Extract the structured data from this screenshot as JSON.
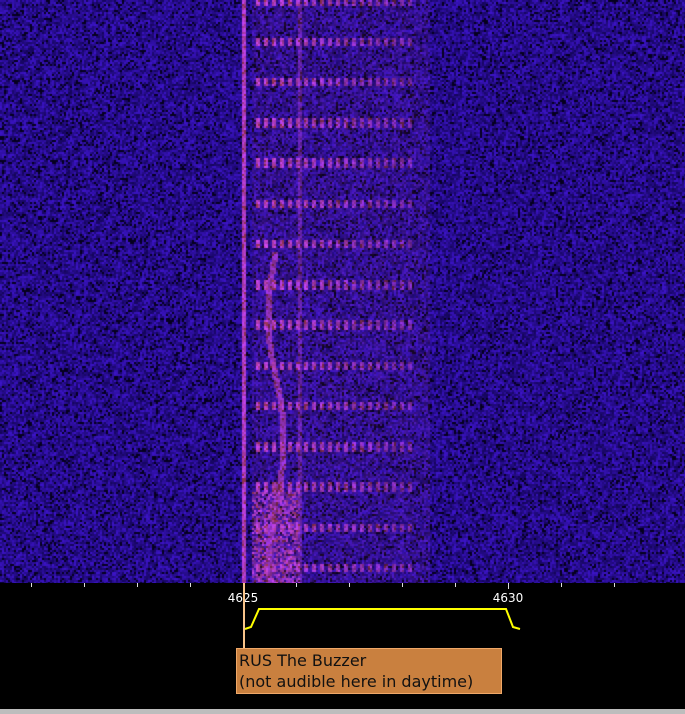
{
  "waterfall": {
    "colors": {
      "background": "#1a0a80",
      "signal": "#b040ff",
      "noise_dark": "#000010"
    }
  },
  "scale": {
    "tick_kHz": [
      4621,
      4622,
      4623,
      4624,
      4625,
      4626,
      4627,
      4628,
      4629,
      4630,
      4631,
      4632
    ],
    "labels": [
      {
        "freq": 4625,
        "text": "4625"
      },
      {
        "freq": 4630,
        "text": "4630"
      }
    ],
    "passband_color": "#ffff00",
    "tuned_kHz": 4625
  },
  "station_label": {
    "line1": "RUS The Buzzer",
    "line2": "(not audible here in daytime)",
    "color": "#c9803f"
  }
}
